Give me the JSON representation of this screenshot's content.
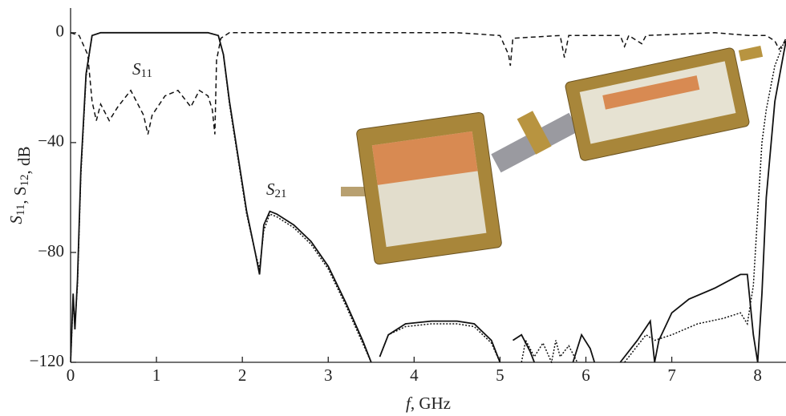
{
  "chart_data": {
    "type": "line",
    "ylabel": [
      {
        "text": "S",
        "sub": "11"
      },
      {
        "text": ", S",
        "sub": "12"
      },
      {
        "text": ", dB"
      }
    ],
    "xlabel": [
      {
        "text": "f",
        "italic": true
      },
      {
        "text": ", GHz"
      }
    ],
    "annotations": [
      {
        "text": "S",
        "sub": "11"
      },
      {
        "text": "S",
        "sub": "21"
      }
    ],
    "xlim": [
      0,
      8.33
    ],
    "ylim": [
      -120,
      9
    ],
    "xticks": [
      0,
      1,
      2,
      3,
      4,
      5,
      6,
      7,
      8
    ],
    "yticks": [
      {
        "value": -120,
        "label": "−120"
      },
      {
        "value": -80,
        "label": "−80"
      },
      {
        "value": -40,
        "label": "−40"
      },
      0
    ],
    "series": [
      {
        "color": "#111",
        "dash": "solid",
        "x": [
          0,
          0.03,
          0.05,
          0.08,
          0.12,
          0.18,
          0.25,
          0.35,
          1.0,
          1.6,
          1.72,
          1.78,
          1.85,
          1.95,
          2.05,
          2.15,
          2.2,
          2.25,
          2.32,
          2.4,
          2.6,
          2.8,
          3.0,
          3.2,
          3.4,
          3.5,
          3.55,
          3.6,
          3.7,
          3.9,
          4.2,
          4.5,
          4.7,
          4.9,
          5.0,
          5.05,
          5.15,
          5.25,
          5.35,
          5.4,
          5.6,
          5.85,
          5.95,
          6.05,
          6.1,
          6.3,
          6.4,
          6.6,
          6.75,
          6.8,
          6.85,
          7.0,
          7.2,
          7.5,
          7.8,
          7.88,
          7.95,
          8.0,
          8.05,
          8.1,
          8.2,
          8.3,
          8.33
        ],
        "values": [
          -120,
          -95,
          -108,
          -90,
          -50,
          -15,
          -1,
          0,
          0,
          0,
          -1,
          -8,
          -25,
          -45,
          -65,
          -80,
          -88,
          -70,
          -65,
          -66,
          -70,
          -76,
          -85,
          -98,
          -112,
          -120,
          null,
          -118,
          -110,
          -106,
          -105,
          -105,
          -106,
          -112,
          -120,
          null,
          -112,
          -110,
          -116,
          -120,
          null,
          -120,
          -110,
          -115,
          -120,
          null,
          -120,
          -112,
          -105,
          -120,
          -112,
          -102,
          -97,
          -93,
          -88,
          -88,
          -110,
          -120,
          -95,
          -60,
          -25,
          -8,
          -3
        ]
      },
      {
        "color": "#111",
        "dash": "dotted",
        "x": [
          0,
          0.03,
          0.05,
          0.08,
          0.12,
          0.18,
          0.25,
          0.35,
          1.0,
          1.6,
          1.72,
          1.78,
          1.85,
          1.95,
          2.05,
          2.15,
          2.2,
          2.25,
          2.32,
          2.4,
          2.6,
          2.8,
          3.0,
          3.2,
          3.4,
          3.5,
          3.55,
          3.6,
          3.7,
          3.9,
          4.2,
          4.5,
          4.7,
          4.9,
          5.0,
          5.05,
          5.25,
          5.3,
          5.4,
          5.5,
          5.6,
          5.65,
          5.7,
          5.8,
          5.9,
          6.3,
          6.45,
          6.6,
          6.7,
          6.8,
          7.0,
          7.3,
          7.6,
          7.8,
          7.88,
          7.95,
          8.05,
          8.1,
          8.2,
          8.3,
          8.33
        ],
        "values": [
          -120,
          -97,
          -106,
          -92,
          -52,
          -16,
          -1,
          0,
          0,
          0,
          -1,
          -8,
          -26,
          -46,
          -66,
          -80,
          -86,
          -72,
          -66,
          -67,
          -71,
          -77,
          -86,
          -99,
          -113,
          -120,
          null,
          -118,
          -110,
          -107,
          -106,
          -106,
          -107,
          -113,
          -120,
          null,
          -120,
          -112,
          -118,
          -113,
          -120,
          -112,
          -118,
          -114,
          -120,
          null,
          -120,
          -114,
          -110,
          -112,
          -110,
          -106,
          -104,
          -102,
          -106,
          -92,
          -40,
          -28,
          -12,
          -4,
          -3
        ]
      },
      {
        "color": "#111",
        "dash": "dashed",
        "x": [
          0,
          0.1,
          0.2,
          0.25,
          0.3,
          0.35,
          0.45,
          0.55,
          0.7,
          0.85,
          0.9,
          0.95,
          1.1,
          1.25,
          1.4,
          1.5,
          1.6,
          1.65,
          1.68,
          1.7,
          1.75,
          1.85,
          3.0,
          4.5,
          5.0,
          5.1,
          5.12,
          5.15,
          5.7,
          5.75,
          5.8,
          6.4,
          6.45,
          6.5,
          6.65,
          6.7,
          7.5,
          7.9,
          8.1,
          8.2,
          8.25,
          8.3,
          8.33
        ],
        "values": [
          0,
          -1,
          -8,
          -25,
          -32,
          -26,
          -32,
          -27,
          -21,
          -30,
          -37,
          -30,
          -23,
          -21,
          -27,
          -21,
          -23,
          -28,
          -37,
          -10,
          -2,
          0,
          0,
          0,
          -1,
          -8,
          -12,
          -2,
          -1,
          -9,
          -1,
          -1,
          -5,
          -1,
          -4,
          -1,
          0,
          -1,
          -1,
          -3,
          -6,
          -4,
          -2
        ]
      }
    ]
  }
}
